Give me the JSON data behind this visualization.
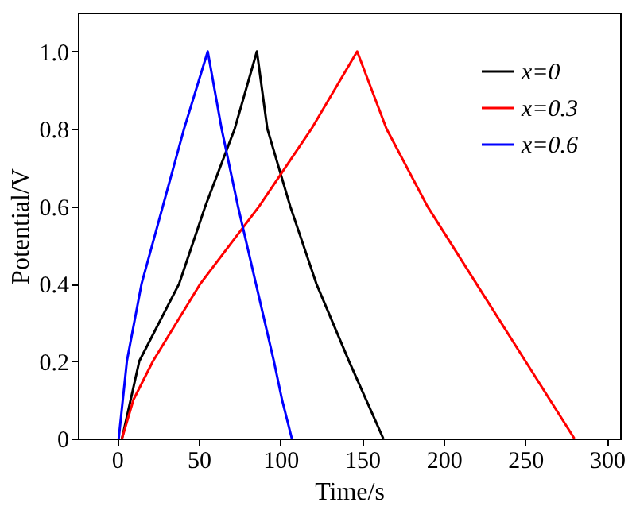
{
  "chart_data": {
    "type": "line",
    "xlabel": "Time/s",
    "ylabel": "Potential/V",
    "xlim": [
      -24,
      308
    ],
    "ylim": [
      0,
      1.1
    ],
    "xticks": [
      0,
      50,
      100,
      150,
      200,
      250,
      300
    ],
    "yticks": [
      {
        "value": 0,
        "label": "0"
      },
      {
        "value": 0.2,
        "label": "0.2"
      },
      {
        "value": 0.4,
        "label": "0.4"
      },
      {
        "value": 0.6,
        "label": "0.6"
      },
      {
        "value": 0.8,
        "label": "0.8"
      },
      {
        "value": 1,
        "label": "1.0"
      }
    ],
    "grid": false,
    "legend": "top right",
    "marker": "none",
    "line_style": "solid",
    "series": [
      {
        "name": "x=0",
        "color": "#000000",
        "x": [
          3,
          13.6,
          38,
          54,
          72,
          85.6,
          92,
          106,
          122,
          142,
          163
        ],
        "values": [
          0,
          0.2,
          0.4,
          0.6,
          0.8,
          1.0,
          0.8,
          0.6,
          0.4,
          0.2,
          0
        ]
      },
      {
        "name": "x=0.3",
        "color": "#ff0000",
        "x": [
          3,
          10,
          22,
          51,
          87,
          119,
          147,
          165,
          190,
          220,
          250,
          280
        ],
        "values": [
          0,
          0.1,
          0.2,
          0.4,
          0.6,
          0.8,
          1.0,
          0.8,
          0.6,
          0.4,
          0.2,
          0
        ]
      },
      {
        "name": "x=0.6",
        "color": "#0000ff",
        "x": [
          1,
          6,
          15,
          28,
          41,
          55.5,
          64,
          74,
          85,
          96,
          101,
          107
        ],
        "values": [
          0,
          0.2,
          0.4,
          0.6,
          0.8,
          1.0,
          0.8,
          0.6,
          0.4,
          0.2,
          0.1,
          0
        ]
      }
    ]
  }
}
